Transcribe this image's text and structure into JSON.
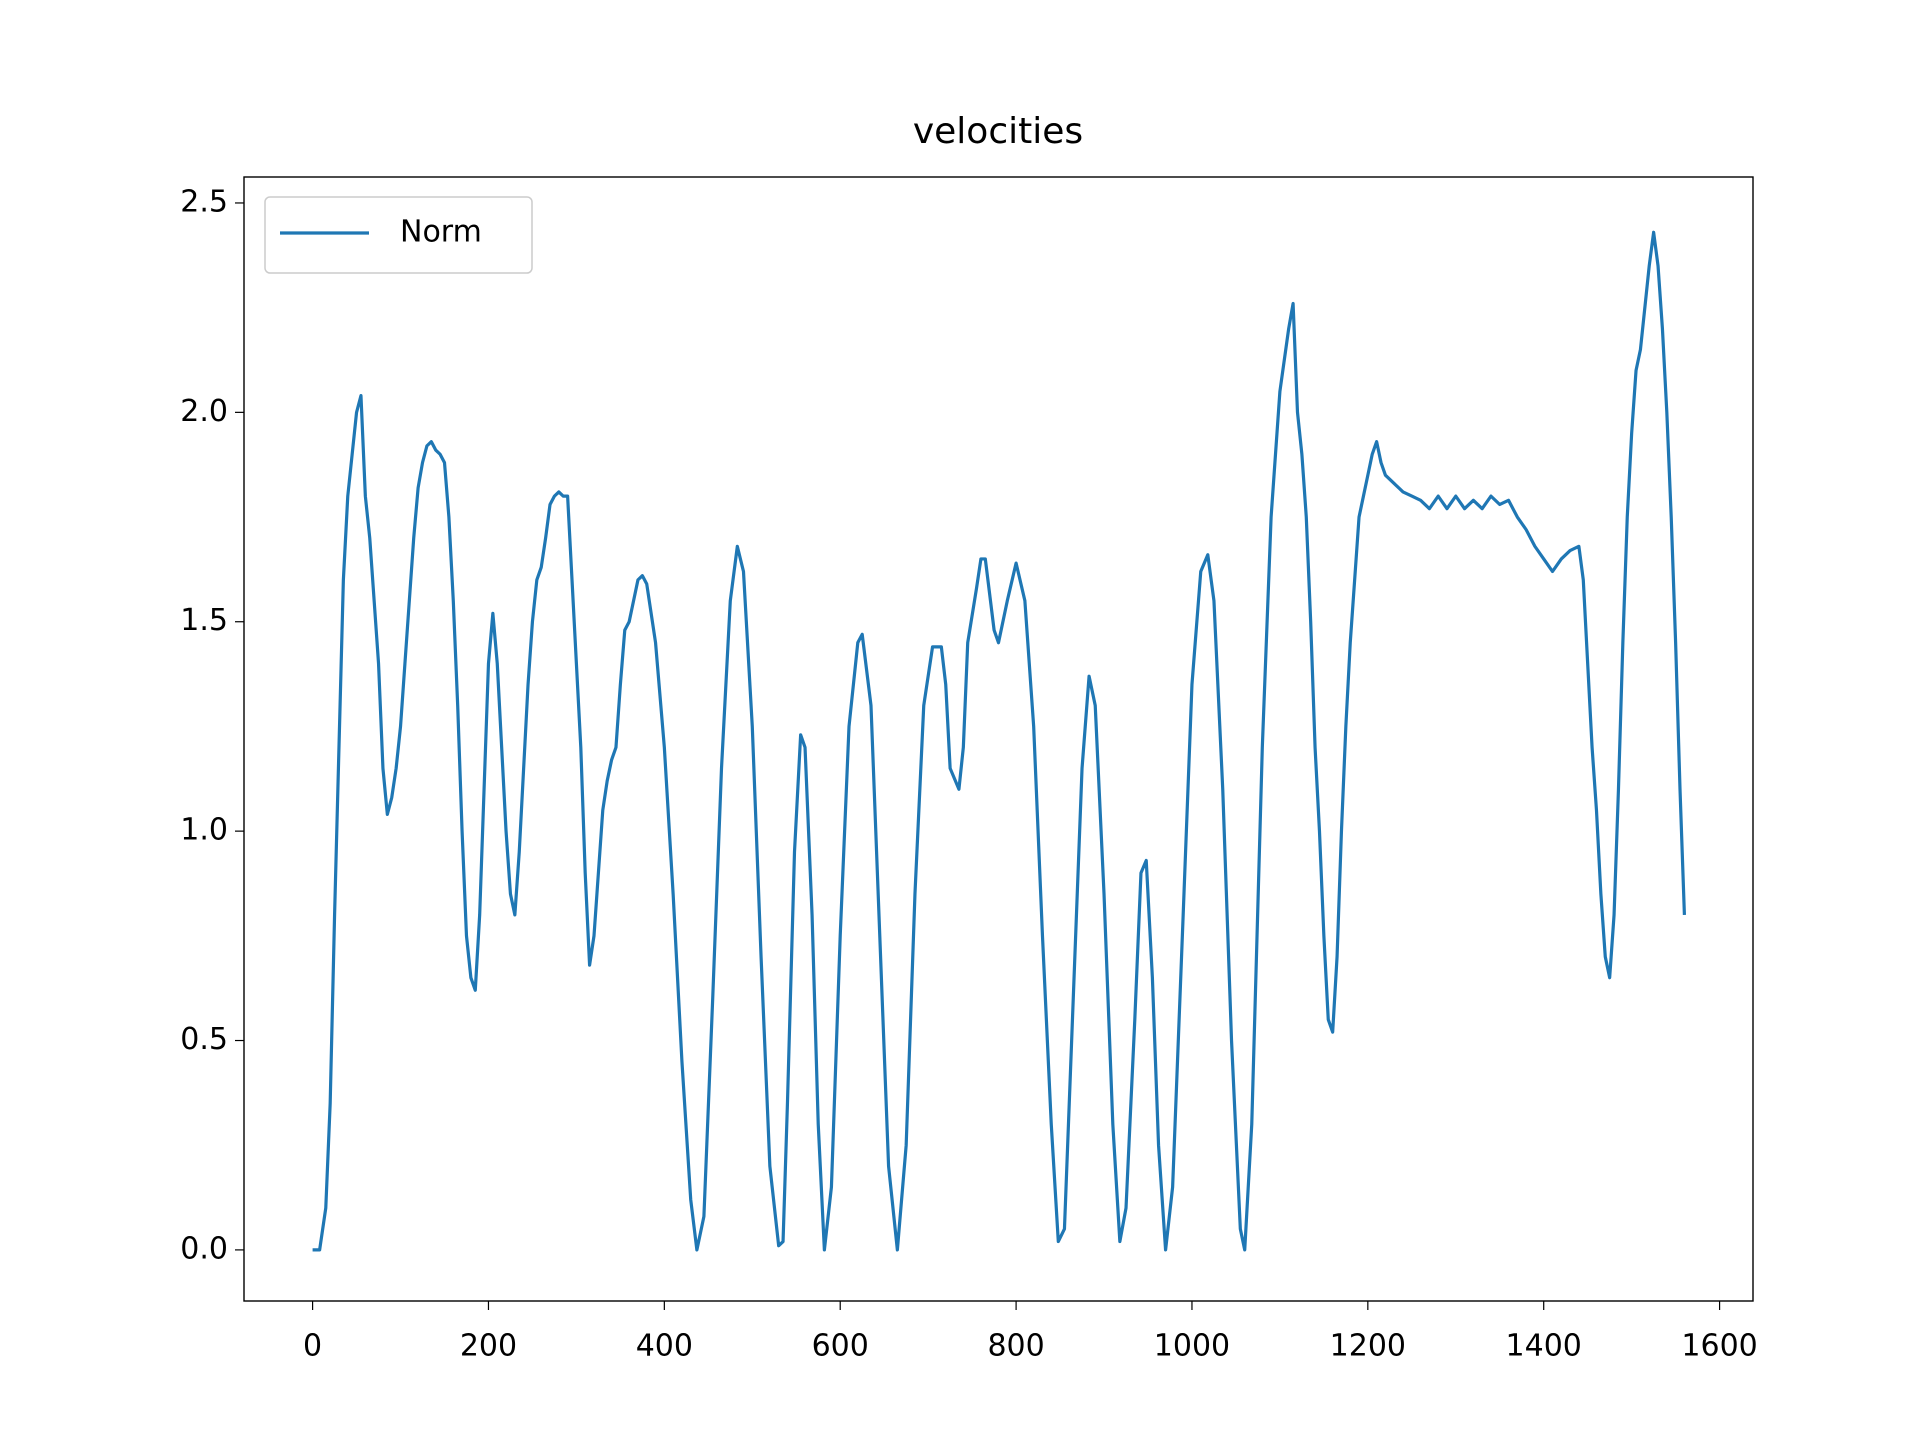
{
  "chart_data": {
    "type": "line",
    "title": "velocities",
    "x": [
      0,
      8,
      15,
      20,
      25,
      30,
      35,
      40,
      45,
      50,
      55,
      60,
      65,
      70,
      75,
      80,
      85,
      90,
      95,
      100,
      105,
      110,
      115,
      120,
      125,
      130,
      135,
      140,
      145,
      150,
      155,
      160,
      165,
      170,
      175,
      180,
      185,
      190,
      195,
      200,
      205,
      210,
      215,
      220,
      225,
      230,
      235,
      240,
      245,
      250,
      255,
      260,
      265,
      270,
      275,
      280,
      285,
      290,
      295,
      300,
      305,
      310,
      315,
      320,
      325,
      330,
      335,
      340,
      345,
      350,
      355,
      360,
      365,
      370,
      375,
      380,
      390,
      400,
      410,
      420,
      430,
      437,
      445,
      455,
      465,
      475,
      483,
      490,
      500,
      510,
      520,
      530,
      535,
      540,
      548,
      555,
      560,
      568,
      575,
      582,
      590,
      600,
      610,
      620,
      625,
      635,
      645,
      655,
      665,
      675,
      685,
      695,
      705,
      715,
      720,
      725,
      735,
      740,
      745,
      755,
      760,
      765,
      775,
      780,
      790,
      800,
      810,
      820,
      830,
      840,
      848,
      855,
      865,
      875,
      883,
      890,
      900,
      910,
      918,
      925,
      935,
      942,
      948,
      955,
      962,
      970,
      978,
      990,
      1000,
      1010,
      1018,
      1025,
      1035,
      1045,
      1055,
      1060,
      1068,
      1080,
      1090,
      1100,
      1110,
      1115,
      1120,
      1125,
      1130,
      1135,
      1140,
      1145,
      1150,
      1155,
      1160,
      1165,
      1170,
      1175,
      1180,
      1185,
      1190,
      1195,
      1200,
      1205,
      1210,
      1215,
      1220,
      1230,
      1240,
      1250,
      1260,
      1270,
      1280,
      1290,
      1300,
      1310,
      1320,
      1330,
      1340,
      1350,
      1360,
      1370,
      1380,
      1390,
      1400,
      1410,
      1420,
      1430,
      1440,
      1445,
      1450,
      1455,
      1460,
      1465,
      1470,
      1475,
      1480,
      1485,
      1490,
      1495,
      1500,
      1505,
      1510,
      1515,
      1520,
      1525,
      1530,
      1535,
      1540,
      1545,
      1550,
      1555,
      1560
    ],
    "series": [
      {
        "name": "Norm",
        "color": "#1f77b4",
        "values": [
          0,
          0,
          0.1,
          0.35,
          0.8,
          1.2,
          1.6,
          1.8,
          1.9,
          2.0,
          2.04,
          1.8,
          1.7,
          1.55,
          1.4,
          1.15,
          1.04,
          1.08,
          1.15,
          1.25,
          1.4,
          1.55,
          1.7,
          1.82,
          1.88,
          1.92,
          1.93,
          1.91,
          1.9,
          1.88,
          1.75,
          1.55,
          1.3,
          1.0,
          0.75,
          0.65,
          0.62,
          0.8,
          1.1,
          1.4,
          1.52,
          1.4,
          1.2,
          1.0,
          0.85,
          0.8,
          0.95,
          1.15,
          1.35,
          1.5,
          1.6,
          1.63,
          1.7,
          1.78,
          1.8,
          1.81,
          1.8,
          1.8,
          1.6,
          1.4,
          1.2,
          0.9,
          0.68,
          0.75,
          0.9,
          1.05,
          1.12,
          1.17,
          1.2,
          1.35,
          1.48,
          1.5,
          1.55,
          1.6,
          1.61,
          1.59,
          1.45,
          1.2,
          0.85,
          0.45,
          0.12,
          0,
          0.08,
          0.6,
          1.15,
          1.55,
          1.68,
          1.62,
          1.25,
          0.7,
          0.2,
          0.01,
          0.02,
          0.35,
          0.95,
          1.23,
          1.2,
          0.8,
          0.3,
          0,
          0.15,
          0.75,
          1.25,
          1.45,
          1.47,
          1.3,
          0.75,
          0.2,
          0,
          0.25,
          0.85,
          1.3,
          1.44,
          1.44,
          1.35,
          1.15,
          1.1,
          1.2,
          1.45,
          1.58,
          1.65,
          1.65,
          1.48,
          1.45,
          1.55,
          1.64,
          1.55,
          1.25,
          0.75,
          0.3,
          0.02,
          0.05,
          0.6,
          1.15,
          1.37,
          1.3,
          0.85,
          0.3,
          0.02,
          0.1,
          0.55,
          0.9,
          0.93,
          0.65,
          0.25,
          0,
          0.15,
          0.8,
          1.35,
          1.62,
          1.66,
          1.55,
          1.1,
          0.5,
          0.05,
          0,
          0.3,
          1.2,
          1.75,
          2.05,
          2.2,
          2.26,
          2.0,
          1.9,
          1.75,
          1.5,
          1.2,
          1.0,
          0.75,
          0.55,
          0.52,
          0.7,
          1.0,
          1.25,
          1.45,
          1.6,
          1.75,
          1.8,
          1.85,
          1.9,
          1.93,
          1.88,
          1.85,
          1.83,
          1.81,
          1.8,
          1.79,
          1.77,
          1.8,
          1.77,
          1.8,
          1.77,
          1.79,
          1.77,
          1.8,
          1.78,
          1.79,
          1.75,
          1.72,
          1.68,
          1.65,
          1.62,
          1.65,
          1.67,
          1.68,
          1.6,
          1.4,
          1.2,
          1.05,
          0.85,
          0.7,
          0.65,
          0.8,
          1.1,
          1.45,
          1.75,
          1.95,
          2.1,
          2.15,
          2.25,
          2.35,
          2.43,
          2.35,
          2.2,
          2.0,
          1.75,
          1.45,
          1.1,
          0.8
        ]
      }
    ],
    "xlim": [
      -78,
      1638
    ],
    "xticks": [
      0,
      200,
      400,
      600,
      800,
      1000,
      1200,
      1400,
      1600
    ],
    "ylim": [
      -0.122,
      2.562
    ],
    "yticks": [
      {
        "value": 0,
        "label": "0.0"
      },
      0.5,
      {
        "value": 1,
        "label": "1.0"
      },
      1.5,
      {
        "value": 2,
        "label": "2.0"
      },
      2.5
    ],
    "grid": false,
    "legend": "upper-left"
  }
}
